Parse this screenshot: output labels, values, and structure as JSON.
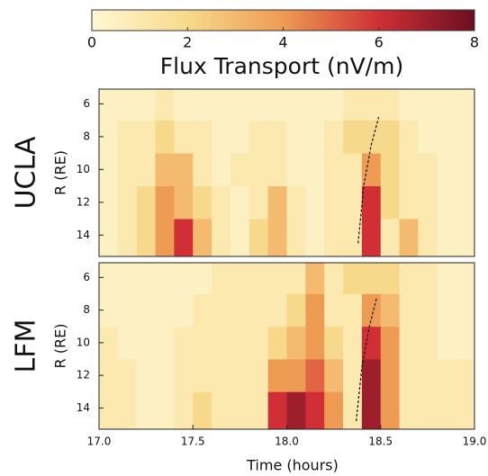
{
  "chart_data": [
    {
      "type": "heatmap",
      "title": "UCLA",
      "ylabel": "R (RE)",
      "colorbar": {
        "title": "Flux Transport (nV/m)",
        "lim": [
          0,
          8
        ],
        "ticks": [
          0,
          2,
          4,
          6,
          8
        ],
        "colors": [
          "#fff8d4",
          "#f7d98c",
          "#ee9b54",
          "#cf2f35",
          "#6b0f22"
        ]
      },
      "xlim": [
        17,
        19
      ],
      "xbins": [
        17.0,
        17.1,
        17.2,
        17.3,
        17.4,
        17.5,
        17.6,
        17.7,
        17.8,
        17.9,
        18.0,
        18.1,
        18.2,
        18.3,
        18.4,
        18.5,
        18.6,
        18.7,
        18.8,
        18.9,
        19.0
      ],
      "ylim": [
        15.3,
        5.1
      ],
      "yticks": [
        6,
        8,
        10,
        12,
        14
      ],
      "ybins": [
        15.3,
        13,
        11,
        9,
        7,
        5.1
      ],
      "values": [
        [
          0.5,
          1,
          2,
          4,
          6,
          3,
          1,
          0.5,
          2,
          3,
          1,
          0.5,
          1,
          1,
          6,
          1,
          3,
          1,
          0.5,
          0.5
        ],
        [
          0.5,
          1,
          2,
          4,
          3,
          2,
          1,
          0.5,
          1,
          3,
          1,
          0.5,
          1,
          1,
          6,
          2,
          1,
          1,
          0.5,
          0.5
        ],
        [
          0.5,
          1,
          1,
          3,
          3,
          1,
          0.5,
          1,
          1,
          1,
          0.5,
          0.5,
          1,
          1,
          4,
          2,
          1,
          1,
          0.5,
          0.5
        ],
        [
          0.5,
          1,
          1,
          2,
          1,
          1,
          0.5,
          0.5,
          1,
          1,
          0.5,
          0.5,
          1,
          2,
          2,
          2,
          1,
          0.5,
          0.5,
          0.5
        ],
        [
          0.5,
          0.5,
          0.5,
          1,
          0.5,
          0.5,
          0.5,
          0.5,
          0.5,
          0.5,
          0.5,
          0.5,
          0.5,
          1,
          1,
          1,
          0.5,
          0.5,
          0.5,
          0.5
        ]
      ],
      "curve": {
        "x": [
          18.38,
          18.41,
          18.45,
          18.49
        ],
        "y": [
          14.5,
          11,
          8.5,
          6.8
        ]
      }
    },
    {
      "type": "heatmap",
      "title": "LFM",
      "ylabel": "R (RE)",
      "xlabel": "Time (hours)",
      "xlim": [
        17,
        19
      ],
      "xticks": [
        {
          "value": 17,
          "label": "17.0"
        },
        17.5,
        {
          "value": 18,
          "label": "18.0"
        },
        18.5,
        {
          "value": 19,
          "label": "19.0"
        }
      ],
      "xbins": [
        17.0,
        17.1,
        17.2,
        17.3,
        17.4,
        17.5,
        17.6,
        17.7,
        17.8,
        17.9,
        18.0,
        18.1,
        18.2,
        18.3,
        18.4,
        18.5,
        18.6,
        18.7,
        18.8,
        18.9,
        19.0
      ],
      "ylim": [
        15.3,
        5.1
      ],
      "yticks": [
        6,
        8,
        10,
        12,
        14
      ],
      "ybins": [
        15.3,
        13,
        11,
        9,
        7,
        5.1
      ],
      "values": [
        [
          1,
          1,
          0.5,
          0.5,
          1,
          2,
          1,
          1,
          1,
          6,
          7,
          6,
          4,
          1,
          7,
          4,
          1,
          1,
          1,
          1
        ],
        [
          1,
          1,
          0.5,
          0.5,
          1,
          1,
          1,
          1,
          1,
          4,
          4,
          5,
          3,
          1,
          7,
          4,
          1,
          1,
          1,
          1
        ],
        [
          1,
          0.5,
          0.5,
          0.5,
          1,
          1,
          1,
          1,
          1,
          2,
          3,
          4,
          2,
          1,
          6,
          4,
          1,
          1,
          0.5,
          0.5
        ],
        [
          0.5,
          0.5,
          0.5,
          0.5,
          0.5,
          1,
          1,
          1,
          1,
          1,
          2,
          4,
          1,
          1,
          4,
          3,
          1,
          1,
          0.5,
          0.5
        ],
        [
          0.5,
          0.5,
          0.5,
          0.5,
          0.5,
          0.5,
          1,
          1,
          1,
          1,
          1,
          3,
          1,
          2,
          2,
          2,
          1,
          1,
          0.5,
          0.5
        ]
      ],
      "curve": {
        "x": [
          18.37,
          18.4,
          18.44,
          18.48
        ],
        "y": [
          14.8,
          11.5,
          9,
          7.2
        ]
      }
    }
  ]
}
